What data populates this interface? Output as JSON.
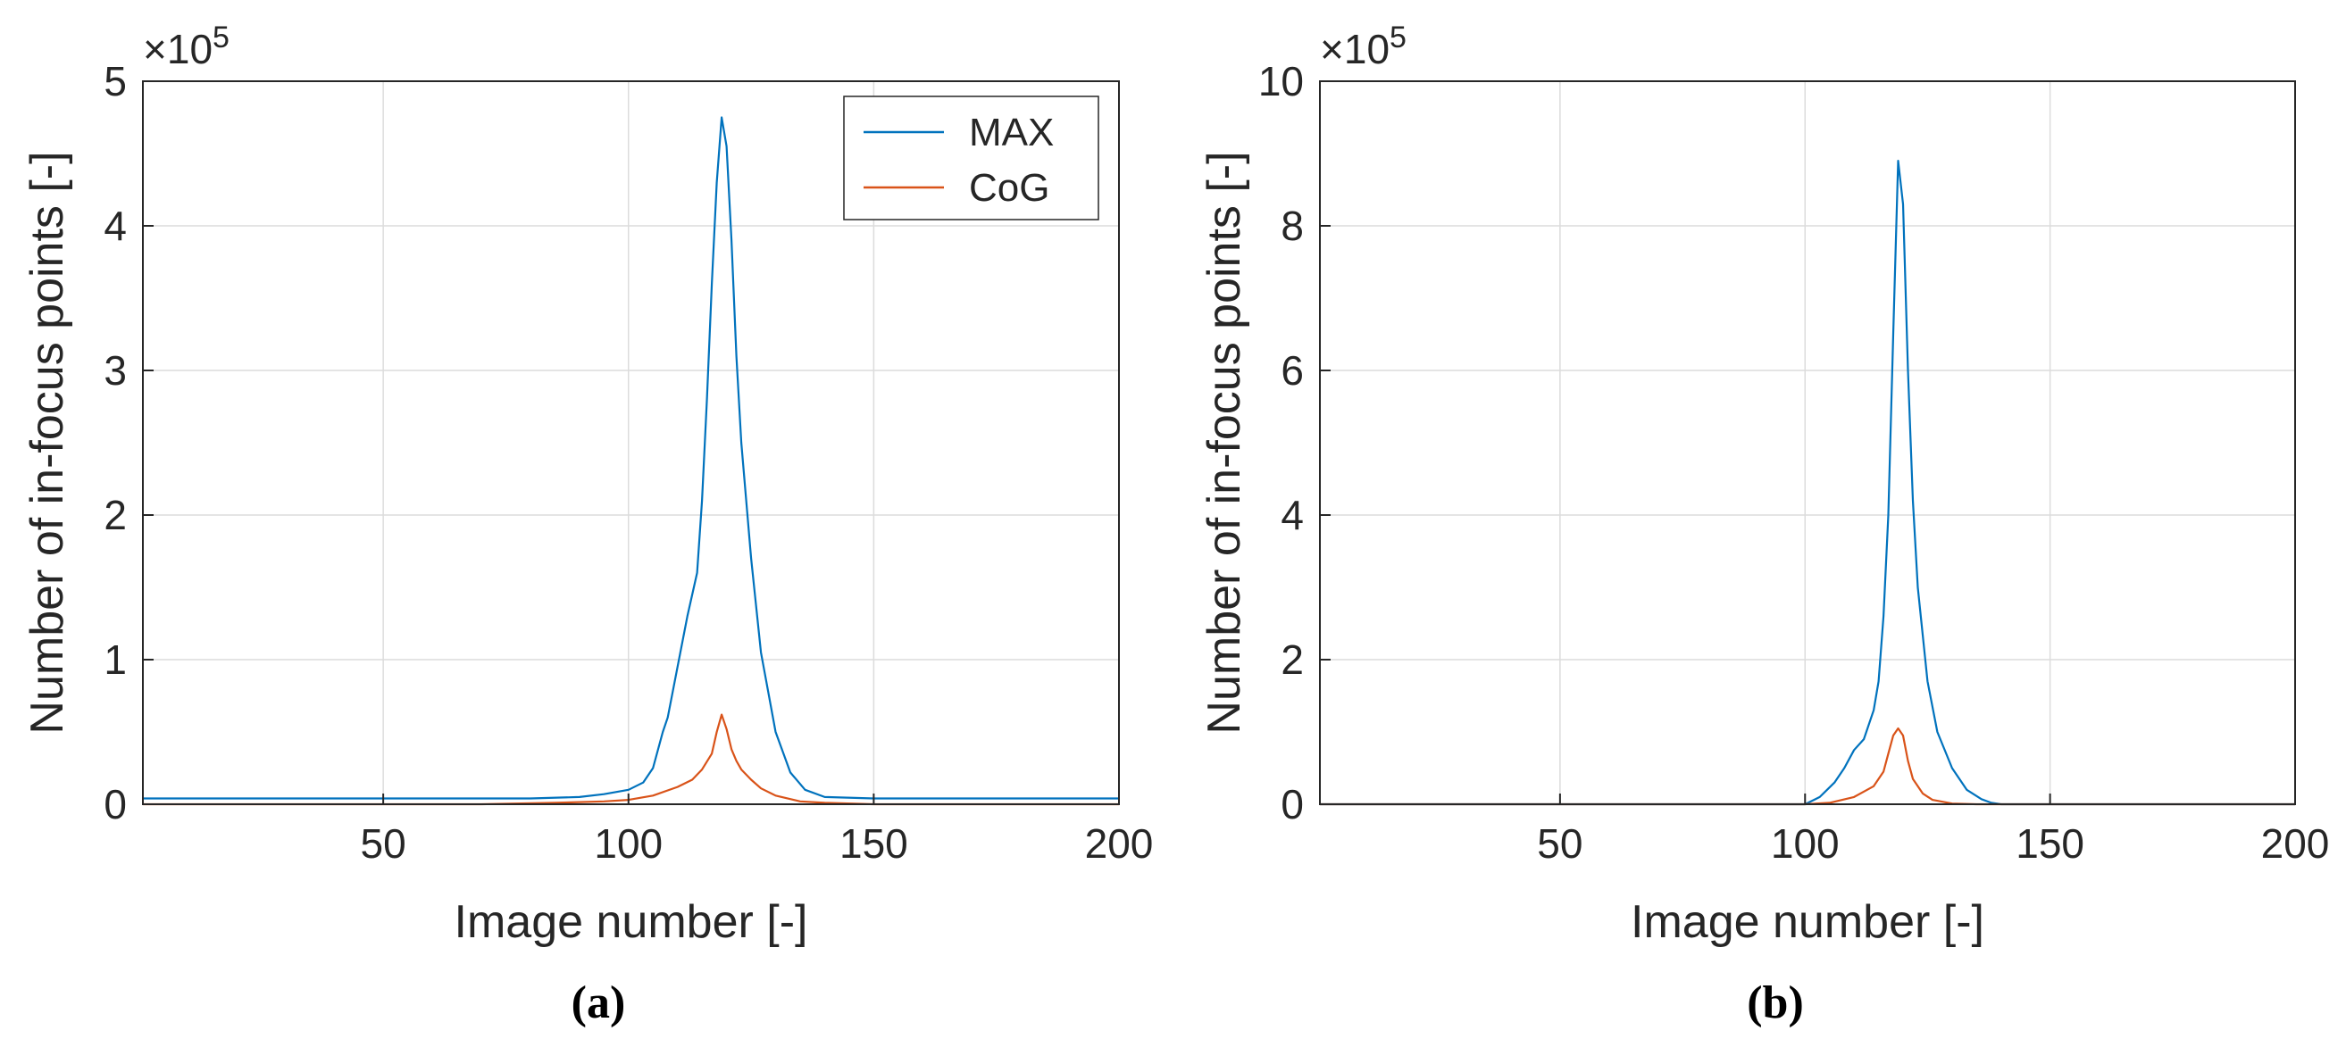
{
  "colors": {
    "max": "#0072BD",
    "cog": "#D95319",
    "grid": "#dcdcdc",
    "axis": "#262626"
  },
  "chart_data": [
    {
      "type": "line",
      "caption": "(a)",
      "xlabel": "Image number [-]",
      "ylabel": "Number of in-focus points [-]",
      "exponent_label": "×10",
      "exponent_power": "5",
      "xlim": [
        1,
        200
      ],
      "ylim": [
        0,
        5
      ],
      "xticks": [
        50,
        100,
        150,
        200
      ],
      "yticks": [
        0,
        1,
        2,
        3,
        4,
        5
      ],
      "xtick_labels": [
        "50",
        "100",
        "150",
        "200"
      ],
      "ytick_labels": [
        "0",
        "1",
        "2",
        "3",
        "4",
        "5"
      ],
      "grid": true,
      "legend": {
        "position": "top-right",
        "entries": [
          "MAX",
          "CoG"
        ]
      },
      "series": [
        {
          "name": "MAX",
          "x": [
            1,
            20,
            40,
            60,
            80,
            90,
            95,
            100,
            103,
            105,
            107,
            108,
            110,
            112,
            114,
            115,
            116,
            117,
            118,
            119,
            120,
            121,
            122,
            123,
            125,
            127,
            130,
            133,
            136,
            140,
            150,
            170,
            190,
            200
          ],
          "y": [
            0.04,
            0.04,
            0.04,
            0.04,
            0.04,
            0.05,
            0.07,
            0.1,
            0.15,
            0.25,
            0.5,
            0.6,
            0.95,
            1.3,
            1.6,
            2.1,
            2.8,
            3.6,
            4.3,
            4.75,
            4.55,
            3.9,
            3.1,
            2.5,
            1.7,
            1.05,
            0.5,
            0.22,
            0.1,
            0.05,
            0.04,
            0.04,
            0.04,
            0.04
          ]
        },
        {
          "name": "CoG",
          "x": [
            1,
            40,
            70,
            85,
            95,
            100,
            105,
            110,
            113,
            115,
            117,
            118,
            119,
            120,
            121,
            122,
            123,
            125,
            127,
            130,
            135,
            140,
            150,
            200
          ],
          "y": [
            0,
            0,
            0,
            0.01,
            0.02,
            0.03,
            0.06,
            0.12,
            0.17,
            0.24,
            0.35,
            0.5,
            0.62,
            0.52,
            0.38,
            0.3,
            0.24,
            0.17,
            0.11,
            0.06,
            0.02,
            0.01,
            0,
            0
          ]
        }
      ]
    },
    {
      "type": "line",
      "caption": "(b)",
      "xlabel": "Image number [-]",
      "ylabel": "Number of in-focus points [-]",
      "exponent_label": "×10",
      "exponent_power": "5",
      "xlim": [
        1,
        200
      ],
      "ylim": [
        0,
        10
      ],
      "xticks": [
        50,
        100,
        150,
        200
      ],
      "yticks": [
        0,
        2,
        4,
        6,
        8,
        10
      ],
      "xtick_labels": [
        "50",
        "100",
        "150",
        "200"
      ],
      "ytick_labels": [
        "0",
        "2",
        "4",
        "6",
        "8",
        "10"
      ],
      "grid": true,
      "legend": null,
      "series": [
        {
          "name": "MAX",
          "x": [
            1,
            50,
            100,
            103,
            106,
            108,
            110,
            112,
            114,
            115,
            116,
            117,
            118,
            119,
            120,
            121,
            122,
            123,
            125,
            127,
            130,
            133,
            136,
            138,
            140,
            200
          ],
          "y": [
            0,
            0,
            0,
            0.1,
            0.3,
            0.5,
            0.75,
            0.9,
            1.3,
            1.7,
            2.6,
            4.0,
            6.5,
            8.9,
            8.3,
            6.0,
            4.2,
            3.0,
            1.7,
            1.0,
            0.5,
            0.2,
            0.07,
            0.02,
            0,
            0
          ]
        },
        {
          "name": "CoG",
          "x": [
            1,
            100,
            105,
            110,
            114,
            116,
            117,
            118,
            119,
            120,
            121,
            122,
            124,
            126,
            130,
            135,
            200
          ],
          "y": [
            0,
            0,
            0.02,
            0.1,
            0.25,
            0.45,
            0.7,
            0.95,
            1.05,
            0.95,
            0.6,
            0.35,
            0.15,
            0.06,
            0.01,
            0,
            0
          ]
        }
      ]
    }
  ]
}
